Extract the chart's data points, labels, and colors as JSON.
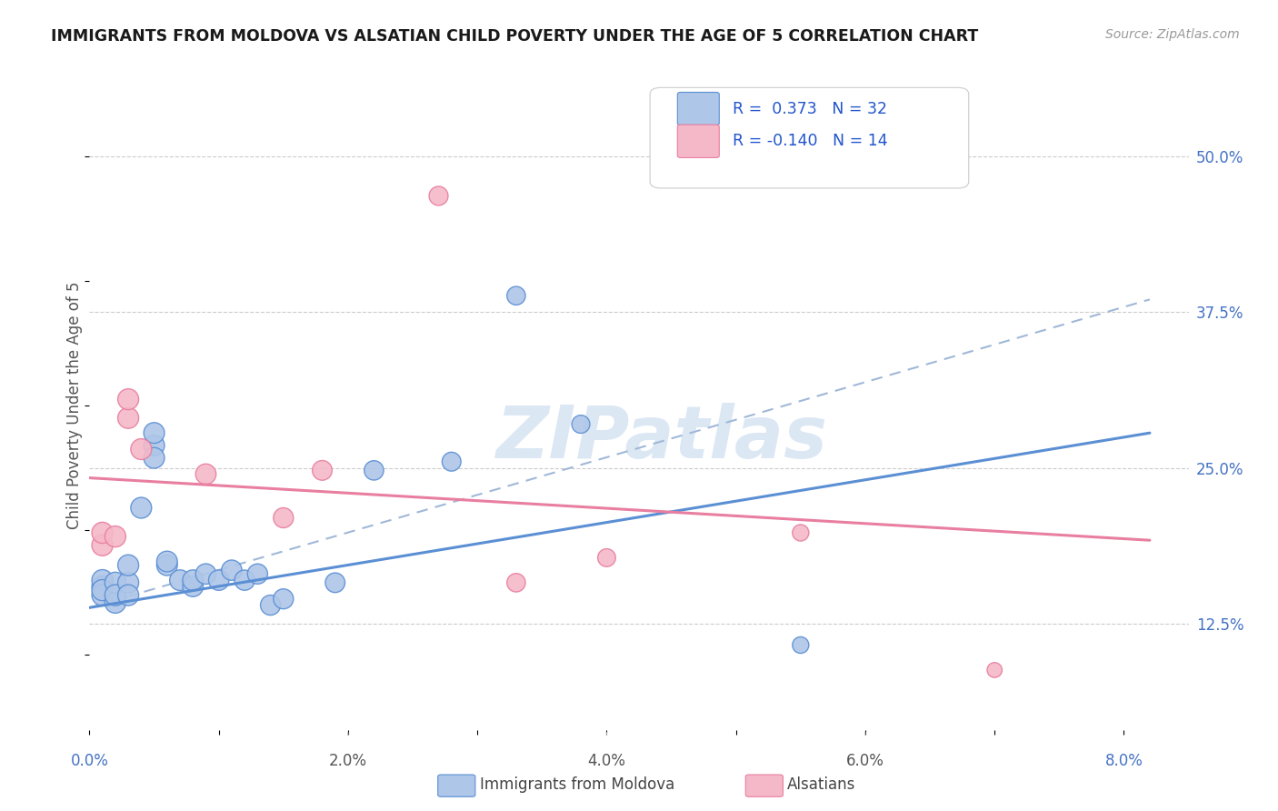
{
  "title": "IMMIGRANTS FROM MOLDOVA VS ALSATIAN CHILD POVERTY UNDER THE AGE OF 5 CORRELATION CHART",
  "source": "Source: ZipAtlas.com",
  "ylabel": "Child Poverty Under the Age of 5",
  "ytick_labels": [
    "12.5%",
    "25.0%",
    "37.5%",
    "50.0%"
  ],
  "ytick_values": [
    0.125,
    0.25,
    0.375,
    0.5
  ],
  "xtick_labels": [
    "0.0%",
    "2.0%",
    "4.0%",
    "6.0%",
    "8.0%"
  ],
  "xtick_values": [
    0.0,
    0.02,
    0.04,
    0.06,
    0.08
  ],
  "xlim": [
    0.0,
    0.085
  ],
  "ylim": [
    0.04,
    0.56
  ],
  "legend_r1": "R =  0.373",
  "legend_n1": "N = 32",
  "legend_r2": "R = -0.140",
  "legend_n2": "N = 14",
  "color_blue": "#aec6e8",
  "color_pink": "#f5b8c8",
  "line_blue": "#5b8fd4",
  "line_pink": "#e87ea0",
  "line_dash_color": "#a0b8d8",
  "watermark": "ZIPatlas",
  "blue_points": [
    [
      0.001,
      0.155
    ],
    [
      0.001,
      0.16
    ],
    [
      0.001,
      0.148
    ],
    [
      0.001,
      0.152
    ],
    [
      0.002,
      0.142
    ],
    [
      0.002,
      0.158
    ],
    [
      0.002,
      0.148
    ],
    [
      0.003,
      0.158
    ],
    [
      0.003,
      0.148
    ],
    [
      0.003,
      0.172
    ],
    [
      0.004,
      0.218
    ],
    [
      0.005,
      0.268
    ],
    [
      0.005,
      0.278
    ],
    [
      0.005,
      0.258
    ],
    [
      0.006,
      0.172
    ],
    [
      0.006,
      0.175
    ],
    [
      0.007,
      0.16
    ],
    [
      0.008,
      0.155
    ],
    [
      0.008,
      0.16
    ],
    [
      0.009,
      0.165
    ],
    [
      0.01,
      0.16
    ],
    [
      0.011,
      0.168
    ],
    [
      0.012,
      0.16
    ],
    [
      0.013,
      0.165
    ],
    [
      0.014,
      0.14
    ],
    [
      0.015,
      0.145
    ],
    [
      0.019,
      0.158
    ],
    [
      0.022,
      0.248
    ],
    [
      0.028,
      0.255
    ],
    [
      0.033,
      0.388
    ],
    [
      0.038,
      0.285
    ],
    [
      0.055,
      0.108
    ]
  ],
  "pink_points": [
    [
      0.001,
      0.188
    ],
    [
      0.001,
      0.198
    ],
    [
      0.002,
      0.195
    ],
    [
      0.003,
      0.29
    ],
    [
      0.003,
      0.305
    ],
    [
      0.004,
      0.265
    ],
    [
      0.009,
      0.245
    ],
    [
      0.015,
      0.21
    ],
    [
      0.018,
      0.248
    ],
    [
      0.027,
      0.468
    ],
    [
      0.033,
      0.158
    ],
    [
      0.04,
      0.178
    ],
    [
      0.055,
      0.198
    ],
    [
      0.07,
      0.088
    ]
  ],
  "blue_line_x": [
    0.0,
    0.082
  ],
  "blue_line_y": [
    0.138,
    0.278
  ],
  "pink_line_x": [
    0.0,
    0.082
  ],
  "pink_line_y": [
    0.242,
    0.192
  ],
  "dash_line_x": [
    0.0,
    0.082
  ],
  "dash_line_y": [
    0.138,
    0.385
  ],
  "background_color": "#ffffff",
  "grid_color": "#cccccc",
  "tick_color": "#4472c4",
  "label_color": "#555555"
}
